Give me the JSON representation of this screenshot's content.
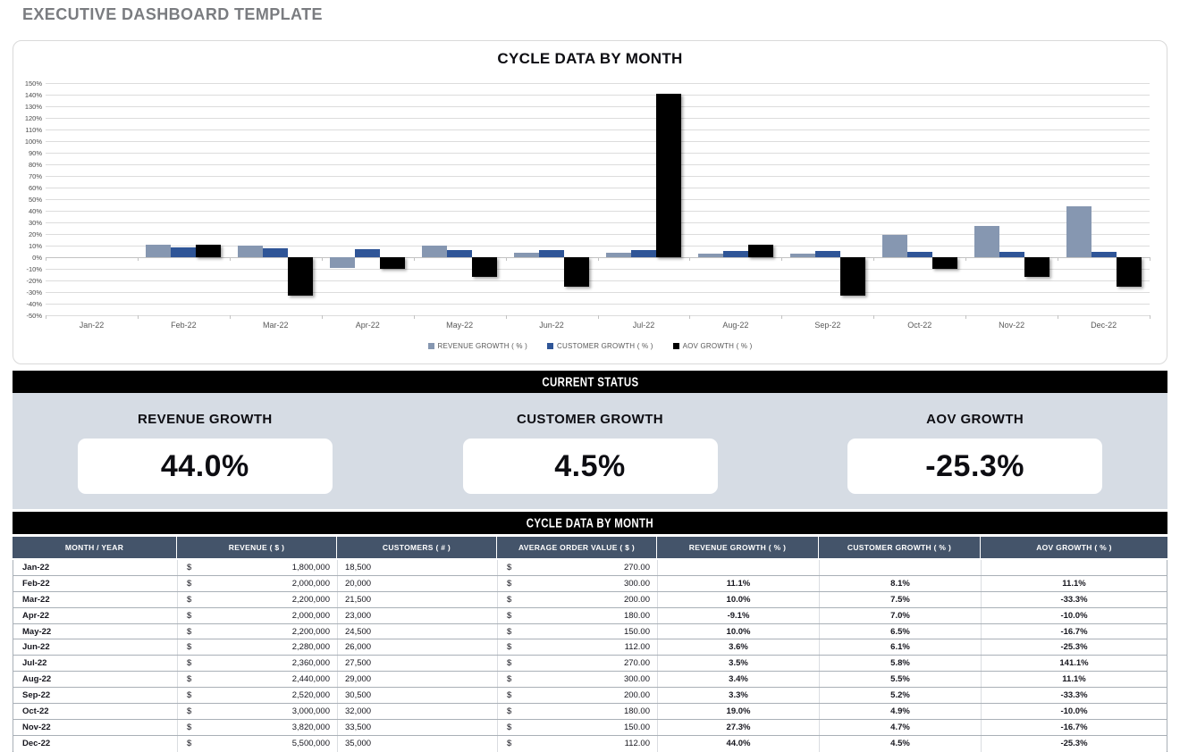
{
  "page_title": "EXECUTIVE DASHBOARD TEMPLATE",
  "chart_data": {
    "type": "bar",
    "title": "CYCLE DATA BY MONTH",
    "categories": [
      "Jan-22",
      "Feb-22",
      "Mar-22",
      "Apr-22",
      "May-22",
      "Jun-22",
      "Jul-22",
      "Aug-22",
      "Sep-22",
      "Oct-22",
      "Nov-22",
      "Dec-22"
    ],
    "series": [
      {
        "name": "REVENUE GROWTH  ( % )",
        "color": "#8697b1",
        "values": [
          null,
          11.1,
          10.0,
          -9.1,
          10.0,
          3.6,
          3.5,
          3.4,
          3.3,
          19.0,
          27.3,
          44.0
        ]
      },
      {
        "name": "CUSTOMER GROWTH  ( % )",
        "color": "#2f5597",
        "values": [
          null,
          8.1,
          7.5,
          7.0,
          6.5,
          6.1,
          5.8,
          5.5,
          5.2,
          4.9,
          4.7,
          4.5
        ]
      },
      {
        "name": "AOV GROWTH  ( % )",
        "color": "#000000",
        "values": [
          null,
          11.1,
          -33.3,
          -10.0,
          -16.7,
          -25.3,
          141.1,
          11.1,
          -33.3,
          -10.0,
          -16.7,
          -25.3
        ]
      }
    ],
    "ylabel": "",
    "xlabel": "",
    "ylim": [
      -50,
      150
    ],
    "ytick_step": 10,
    "ytick_format": "percent",
    "grid": true,
    "legend_position": "bottom"
  },
  "status": {
    "header": "CURRENT STATUS",
    "kpis": [
      {
        "label": "REVENUE GROWTH",
        "value": "44.0%"
      },
      {
        "label": "CUSTOMER GROWTH",
        "value": "4.5%"
      },
      {
        "label": "AOV GROWTH",
        "value": "-25.3%"
      }
    ]
  },
  "table": {
    "header": "CYCLE DATA BY MONTH",
    "currency_symbol": "$",
    "columns": [
      "MONTH / YEAR",
      "REVENUE  ( $ )",
      "CUSTOMERS  ( # )",
      "AVERAGE ORDER VALUE  ( $ )",
      "REVENUE GROWTH  ( % )",
      "CUSTOMER GROWTH  ( % )",
      "AOV GROWTH  ( % )"
    ],
    "rows": [
      {
        "month": "Jan-22",
        "revenue": "1,800,000",
        "customers": "18,500",
        "aov": "270.00",
        "revenue_growth": "",
        "customer_growth": "",
        "aov_growth": ""
      },
      {
        "month": "Feb-22",
        "revenue": "2,000,000",
        "customers": "20,000",
        "aov": "300.00",
        "revenue_growth": "11.1%",
        "customer_growth": "8.1%",
        "aov_growth": "11.1%"
      },
      {
        "month": "Mar-22",
        "revenue": "2,200,000",
        "customers": "21,500",
        "aov": "200.00",
        "revenue_growth": "10.0%",
        "customer_growth": "7.5%",
        "aov_growth": "-33.3%"
      },
      {
        "month": "Apr-22",
        "revenue": "2,000,000",
        "customers": "23,000",
        "aov": "180.00",
        "revenue_growth": "-9.1%",
        "customer_growth": "7.0%",
        "aov_growth": "-10.0%"
      },
      {
        "month": "May-22",
        "revenue": "2,200,000",
        "customers": "24,500",
        "aov": "150.00",
        "revenue_growth": "10.0%",
        "customer_growth": "6.5%",
        "aov_growth": "-16.7%"
      },
      {
        "month": "Jun-22",
        "revenue": "2,280,000",
        "customers": "26,000",
        "aov": "112.00",
        "revenue_growth": "3.6%",
        "customer_growth": "6.1%",
        "aov_growth": "-25.3%"
      },
      {
        "month": "Jul-22",
        "revenue": "2,360,000",
        "customers": "27,500",
        "aov": "270.00",
        "revenue_growth": "3.5%",
        "customer_growth": "5.8%",
        "aov_growth": "141.1%"
      },
      {
        "month": "Aug-22",
        "revenue": "2,440,000",
        "customers": "29,000",
        "aov": "300.00",
        "revenue_growth": "3.4%",
        "customer_growth": "5.5%",
        "aov_growth": "11.1%"
      },
      {
        "month": "Sep-22",
        "revenue": "2,520,000",
        "customers": "30,500",
        "aov": "200.00",
        "revenue_growth": "3.3%",
        "customer_growth": "5.2%",
        "aov_growth": "-33.3%"
      },
      {
        "month": "Oct-22",
        "revenue": "3,000,000",
        "customers": "32,000",
        "aov": "180.00",
        "revenue_growth": "19.0%",
        "customer_growth": "4.9%",
        "aov_growth": "-10.0%"
      },
      {
        "month": "Nov-22",
        "revenue": "3,820,000",
        "customers": "33,500",
        "aov": "150.00",
        "revenue_growth": "27.3%",
        "customer_growth": "4.7%",
        "aov_growth": "-16.7%"
      },
      {
        "month": "Dec-22",
        "revenue": "5,500,000",
        "customers": "35,000",
        "aov": "112.00",
        "revenue_growth": "44.0%",
        "customer_growth": "4.5%",
        "aov_growth": "-25.3%"
      }
    ]
  },
  "colors": {
    "title_text": "#7a7c80",
    "revenue_bar": "#8697b1",
    "customer_bar": "#2f5597",
    "aov_bar": "#000000",
    "band_bg": "#000000",
    "kpi_panel_bg": "#d6dce4",
    "table_header_bg": "#44546a",
    "gridline": "#dcdcdc"
  }
}
